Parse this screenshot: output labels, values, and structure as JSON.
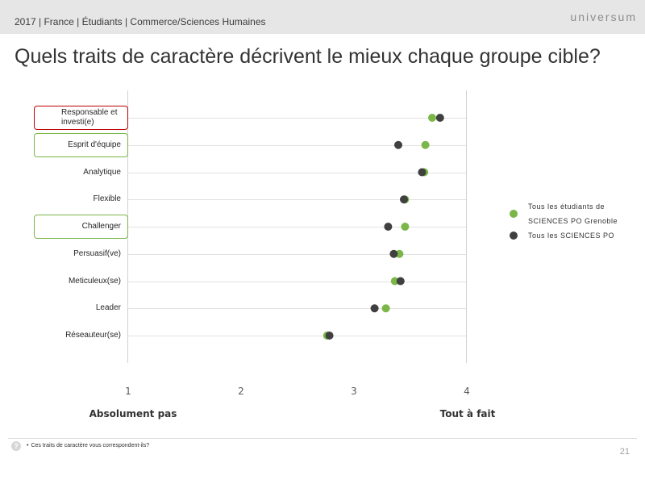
{
  "header": {
    "breadcrumb": "2017 | France | Étudiants | Commerce/Sciences Humaines",
    "logo_text": "universum"
  },
  "title": "Quels traits de caractère décrivent le mieux chaque groupe cible?",
  "chart_data": {
    "type": "scatter",
    "categories": [
      "Responsable et investi(e)",
      "Esprit d'équipe",
      "Analytique",
      "Flexible",
      "Challenger",
      "Persuasif(ve)",
      "Meticuleux(se)",
      "Leader",
      "Réseauteur(se)"
    ],
    "series": [
      {
        "name": "Tous les étudiants de SCIENCES PO Grenoble",
        "color": "#7ab648",
        "values": [
          3.7,
          3.64,
          3.63,
          3.46,
          3.46,
          3.41,
          3.37,
          3.29,
          2.77
        ]
      },
      {
        "name": "Tous les SCIENCES PO",
        "color": "#404040",
        "values": [
          3.77,
          3.4,
          3.61,
          3.45,
          3.31,
          3.36,
          3.42,
          3.19,
          2.79
        ]
      }
    ],
    "xlim": [
      1,
      4
    ],
    "xticks": [
      1,
      2,
      3,
      4
    ],
    "scale_labels": {
      "low": "Absolument pas",
      "high": "Tout à fait"
    },
    "highlight_colors": [
      "#c00000",
      "#7ab648",
      null,
      null,
      "#7ab648",
      null,
      null,
      null,
      null
    ],
    "grid": true,
    "legend_position": "right"
  },
  "footer": {
    "question": "Ces traits de caractère vous correspondent-ils?",
    "page_number": "21",
    "help_icon": "help-icon"
  }
}
